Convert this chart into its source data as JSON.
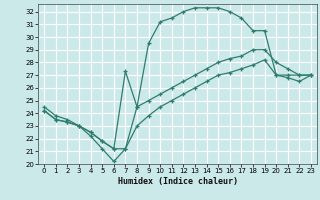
{
  "xlabel": "Humidex (Indice chaleur)",
  "bg_color": "#cce9e9",
  "grid_color": "#ffffff",
  "line_color": "#2e7d6e",
  "xlim": [
    -0.5,
    23.5
  ],
  "ylim": [
    20,
    32.6
  ],
  "yticks": [
    20,
    21,
    22,
    23,
    24,
    25,
    26,
    27,
    28,
    29,
    30,
    31,
    32
  ],
  "xticks": [
    0,
    1,
    2,
    3,
    4,
    5,
    6,
    7,
    8,
    9,
    10,
    11,
    12,
    13,
    14,
    15,
    16,
    17,
    18,
    19,
    20,
    21,
    22,
    23
  ],
  "curve1_x": [
    0,
    1,
    2,
    3,
    4,
    5,
    6,
    7,
    8,
    9,
    10,
    11,
    12,
    13,
    14,
    15,
    16,
    17,
    18,
    19,
    20,
    21,
    22,
    23
  ],
  "curve1_y": [
    24.5,
    23.8,
    23.5,
    23.0,
    22.2,
    21.2,
    20.2,
    21.2,
    24.5,
    29.5,
    31.2,
    31.5,
    32.0,
    32.3,
    32.3,
    32.3,
    32.0,
    31.5,
    30.5,
    30.5,
    27.0,
    27.0,
    27.0,
    27.0
  ],
  "curve2_x": [
    0,
    1,
    2,
    3,
    4,
    5,
    6,
    7,
    8,
    9,
    10,
    11,
    12,
    13,
    14,
    15,
    16,
    17,
    18,
    19,
    20,
    21,
    22,
    23
  ],
  "curve2_y": [
    24.2,
    23.5,
    23.3,
    23.0,
    22.5,
    21.8,
    21.2,
    27.3,
    24.5,
    25.0,
    25.5,
    26.0,
    26.5,
    27.0,
    27.5,
    28.0,
    28.3,
    28.5,
    29.0,
    29.0,
    28.0,
    27.5,
    27.0,
    27.0
  ],
  "curve3_x": [
    0,
    1,
    2,
    3,
    4,
    5,
    6,
    7,
    8,
    9,
    10,
    11,
    12,
    13,
    14,
    15,
    16,
    17,
    18,
    19,
    20,
    21,
    22,
    23
  ],
  "curve3_y": [
    24.2,
    23.5,
    23.3,
    23.0,
    22.5,
    21.8,
    21.2,
    21.2,
    23.0,
    23.8,
    24.5,
    25.0,
    25.5,
    26.0,
    26.5,
    27.0,
    27.2,
    27.5,
    27.8,
    28.2,
    27.0,
    26.8,
    26.5,
    27.0
  ]
}
